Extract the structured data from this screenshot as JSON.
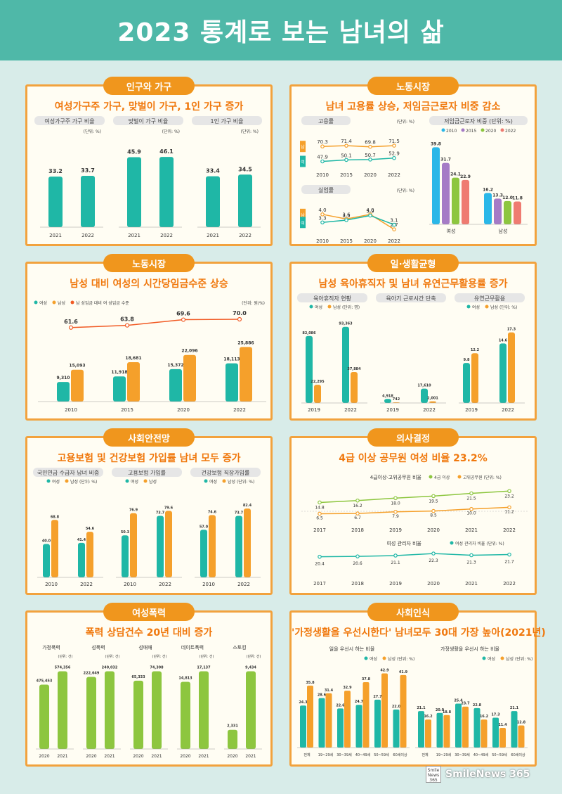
{
  "title": "2023 통계로 보는 남녀의 삶",
  "colors": {
    "teal": "#1fb7a6",
    "orange": "#f5a02b",
    "green": "#8dc63f",
    "red": "#f15a24",
    "accent": "#f0961d",
    "purple": "#a57bc6",
    "coral": "#ef7b71",
    "blue": "#2ab7e8"
  },
  "logo": {
    "box": "Smile News 365",
    "text": "SmileNews 365"
  },
  "panels": [
    {
      "title": "인구와 가구",
      "subtitle": "여성가구주 가구, 맞벌이 가구, 1인 가구 증가"
    },
    {
      "title": "노동시장",
      "subtitle": "남녀 고용률 상승, 저임금근로자 비중 감소"
    },
    {
      "title": "노동시장",
      "subtitle": "남성 대비 여성의 시간당임금수준 상승"
    },
    {
      "title": "일·생활균형",
      "subtitle": "남성 육아휴직자 및 남녀 유연근무활용률 증가"
    },
    {
      "title": "사회안전망",
      "subtitle": "고용보험 및 건강보험 가입률 남녀 모두 증가"
    },
    {
      "title": "의사결정",
      "subtitle": "4급 이상 공무원 여성 비율 23.2%"
    },
    {
      "title": "여성폭력",
      "subtitle": "폭력 상담건수 20년 대비 증가"
    },
    {
      "title": "사회인식",
      "subtitle": "'가정생활을 우선시한다' 남녀모두 30대 가장 높아(2021년)"
    }
  ],
  "chart_data": [
    {
      "type": "bar",
      "panel": 1,
      "groups": [
        {
          "label": "여성가구주 가구 비율",
          "unit": "(단위: %)",
          "categories": [
            "2021",
            "2022"
          ],
          "values": [
            33.2,
            33.7
          ]
        },
        {
          "label": "맞벌이 가구 비율",
          "unit": "(단위: %)",
          "categories": [
            "2021",
            "2022"
          ],
          "values": [
            45.9,
            46.1
          ]
        },
        {
          "label": "1인 가구 비율",
          "unit": "(단위: %)",
          "categories": [
            "2021",
            "2022"
          ],
          "values": [
            33.4,
            34.5
          ]
        }
      ]
    },
    {
      "type": "line",
      "panel": 2,
      "label": "고용률",
      "unit": "(단위: %)",
      "x": [
        "2010",
        "2015",
        "2020",
        "2022"
      ],
      "series": [
        {
          "name": "남성",
          "values": [
            70.3,
            71.4,
            69.8,
            71.5
          ]
        },
        {
          "name": "여성",
          "values": [
            47.9,
            50.1,
            50.7,
            52.9
          ]
        }
      ]
    },
    {
      "type": "line",
      "panel": 2,
      "label": "실업률",
      "unit": "(단위: %)",
      "x": [
        "2010",
        "2015",
        "2020",
        "2022"
      ],
      "series": [
        {
          "name": "남성",
          "values": [
            4.0,
            3.6,
            4.0,
            2.7
          ]
        },
        {
          "name": "여성",
          "values": [
            3.3,
            3.5,
            3.9,
            3.1
          ]
        }
      ]
    },
    {
      "type": "bar",
      "panel": 2,
      "label": "저임금근로자 비중",
      "unit": "(단위: %)",
      "legend": [
        "2010",
        "2015",
        "2020",
        "2022"
      ],
      "categories": [
        "여성",
        "남성"
      ],
      "series": [
        {
          "name": "2010",
          "values": [
            39.8,
            16.2
          ]
        },
        {
          "name": "2015",
          "values": [
            31.7,
            13.3
          ]
        },
        {
          "name": "2020",
          "values": [
            24.1,
            12.0
          ]
        },
        {
          "name": "2022",
          "values": [
            22.9,
            11.8
          ]
        }
      ]
    },
    {
      "type": "bar",
      "panel": 3,
      "unit": "(단위: 원/%)",
      "legend": [
        "여성",
        "남성",
        "남 성임금 대비 여 성임금 수준"
      ],
      "categories": [
        "2010",
        "2015",
        "2020",
        "2022"
      ],
      "series": [
        {
          "name": "여성",
          "values": [
            9310,
            11918,
            15372,
            18113
          ],
          "labels": [
            "9,310",
            "11,918",
            "15,372",
            "18,113"
          ]
        },
        {
          "name": "남성",
          "values": [
            15093,
            18681,
            22096,
            25886
          ],
          "labels": [
            "15,093",
            "18,681",
            "22,096",
            "25,886"
          ]
        }
      ],
      "line": {
        "values": [
          61.6,
          63.8,
          69.6,
          70.0
        ],
        "labels": [
          "61.6",
          "63.8",
          "69.6",
          "70.0"
        ]
      }
    },
    {
      "type": "bar",
      "panel": 4,
      "groups": [
        {
          "label": "육아휴직자 현황",
          "legend": [
            "여성",
            "남성 (단위: 명)"
          ],
          "categories": [
            "2019",
            "2022"
          ],
          "series": [
            {
              "values": [
                82086,
                93363
              ],
              "labels": [
                "82,086",
                "93,363"
              ]
            },
            {
              "values": [
                22295,
                37884
              ],
              "labels": [
                "22,295",
                "37,884"
              ]
            }
          ]
        },
        {
          "label": "육아기 근로시간 단축",
          "categories": [
            "2019",
            "2022"
          ],
          "series": [
            {
              "values": [
                4918,
                17610
              ],
              "labels": [
                "4,918",
                "17,610"
              ]
            },
            {
              "values": [
                742,
                2001
              ],
              "labels": [
                "742",
                "2,001"
              ]
            }
          ]
        },
        {
          "label": "유연근무활용",
          "legend": [
            "여성",
            "남성 (단위: %)"
          ],
          "categories": [
            "2019",
            "2022"
          ],
          "series": [
            {
              "values": [
                9.8,
                14.6
              ],
              "labels": [
                "9.8",
                "14.6"
              ]
            },
            {
              "values": [
                12.2,
                17.3
              ],
              "labels": [
                "12.2",
                "17.3"
              ]
            }
          ]
        }
      ]
    },
    {
      "type": "bar",
      "panel": 5,
      "groups": [
        {
          "label": "국민연금 수급자 남녀 비중",
          "legend": [
            "여성",
            "남성 (단위: %)"
          ],
          "categories": [
            "2010",
            "2022"
          ],
          "series": [
            {
              "values": [
                40.0,
                41.4
              ]
            },
            {
              "values": [
                68.8,
                54.6
              ]
            }
          ]
        },
        {
          "label": "고용보험 가입률",
          "legend": [
            "여성",
            "남성"
          ],
          "categories": [
            "2010",
            "2022"
          ],
          "series": [
            {
              "values": [
                50.3,
                73.7
              ]
            },
            {
              "values": [
                76.9,
                79.6
              ]
            }
          ]
        },
        {
          "label": "건강보험 직장가입률",
          "legend": [
            "여성",
            "남성 (단위: %)"
          ],
          "categories": [
            "2010",
            "2022"
          ],
          "series": [
            {
              "values": [
                57.0,
                73.7
              ]
            },
            {
              "values": [
                74.6,
                82.4
              ]
            }
          ]
        }
      ]
    },
    {
      "type": "line",
      "panel": 6,
      "label": "4급이상·고위공무원 비율",
      "legend": [
        "4급 이상",
        "고위공무원 (단위: %)"
      ],
      "x": [
        "2017",
        "2018",
        "2019",
        "2020",
        "2021",
        "2022"
      ],
      "series": [
        {
          "name": "4급 이상",
          "values": [
            14.8,
            16.2,
            18.0,
            19.5,
            21.5,
            23.2
          ]
        },
        {
          "name": "고위공무원",
          "values": [
            6.5,
            6.7,
            7.9,
            8.5,
            10.0,
            11.2
          ]
        }
      ]
    },
    {
      "type": "line",
      "panel": 6,
      "label": "여성 관리자 비율",
      "legend": [
        "여성 관리자 비율 (단위: %)"
      ],
      "x": [
        "2017",
        "2018",
        "2019",
        "2020",
        "2021",
        "2022"
      ],
      "series": [
        {
          "name": "여성 관리자 비율",
          "values": [
            20.4,
            20.6,
            21.1,
            22.3,
            21.3,
            21.7
          ]
        }
      ]
    },
    {
      "type": "bar",
      "panel": 7,
      "groups": [
        {
          "label": "가정폭력",
          "unit": "(단위: 건)",
          "categories": [
            "2020",
            "2021"
          ],
          "values": [
            475453,
            574356
          ],
          "labels": [
            "475,453",
            "574,356"
          ]
        },
        {
          "label": "성폭력",
          "unit": "(단위: 건)",
          "categories": [
            "2020",
            "2021"
          ],
          "values": [
            222649,
            240032
          ],
          "labels": [
            "222,649",
            "240,032"
          ]
        },
        {
          "label": "성매매",
          "unit": "(단위: 건)",
          "categories": [
            "2020",
            "2021"
          ],
          "values": [
            65333,
            74308
          ],
          "labels": [
            "65,333",
            "74,308"
          ]
        },
        {
          "label": "데이트폭력",
          "unit": "(단위: 건)",
          "categories": [
            "2020",
            "2021"
          ],
          "values": [
            14813,
            17137
          ],
          "labels": [
            "14,813",
            "17,137"
          ]
        },
        {
          "label": "스토킹",
          "unit": "(단위: 건)",
          "categories": [
            "2020",
            "2021"
          ],
          "values": [
            2331,
            9434
          ],
          "labels": [
            "2,331",
            "9,434"
          ]
        }
      ]
    },
    {
      "type": "bar",
      "panel": 8,
      "groups": [
        {
          "label": "일을 우선시 하는 비율",
          "legend": [
            "여성",
            "남성 (단위: %)"
          ],
          "categories": [
            "전체",
            "19~29세",
            "30~39세",
            "40~49세",
            "50~59세",
            "60세이상"
          ],
          "series": [
            {
              "name": "여성",
              "values": [
                24.3,
                28.6,
                22.6,
                24.7,
                27.7,
                22.0
              ]
            },
            {
              "name": "남성",
              "values": [
                35.8,
                31.4,
                32.9,
                37.8,
                42.9,
                41.9
              ]
            }
          ]
        },
        {
          "label": "가정생활을 우선시 하는 비율",
          "legend": [
            "여성",
            "남성 (단위: %)"
          ],
          "categories": [
            "전체",
            "19~29세",
            "30~39세",
            "40~49세",
            "50~59세",
            "60세이상"
          ],
          "series": [
            {
              "name": "여성",
              "values": [
                21.1,
                20.0,
                25.4,
                22.8,
                17.3,
                21.1
              ]
            },
            {
              "name": "남성",
              "values": [
                16.2,
                18.8,
                23.7,
                16.2,
                11.4,
                12.8
              ]
            }
          ]
        }
      ]
    }
  ]
}
